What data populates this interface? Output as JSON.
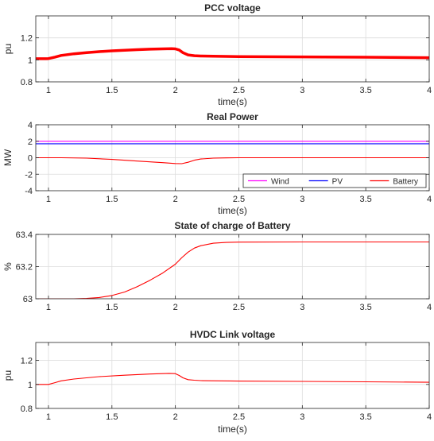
{
  "chart_data": [
    {
      "type": "line",
      "title": "PCC voltage",
      "xlabel": "time(s)",
      "ylabel": "pu",
      "xlim": [
        0.9,
        4.0
      ],
      "ylim": [
        0.8,
        1.4
      ],
      "xticks": [
        1,
        1.5,
        2,
        2.5,
        3,
        3.5,
        4
      ],
      "xtick_labels": [
        "1",
        "1.5",
        "2",
        "2.5",
        "3",
        "3.5",
        "4"
      ],
      "yticks": [
        0.8,
        1.0,
        1.2
      ],
      "ytick_labels": [
        "0.8",
        "1",
        "1.2"
      ],
      "grid": true,
      "series": [
        {
          "color": "#ff0000",
          "x": [
            0.9,
            0.98,
            1.0,
            1.05,
            1.1,
            1.2,
            1.3,
            1.4,
            1.5,
            1.6,
            1.7,
            1.8,
            1.9,
            1.97,
            2.0,
            2.03,
            2.06,
            2.1,
            2.15,
            2.2,
            2.3,
            2.5,
            3.0,
            3.5,
            4.0
          ],
          "y": [
            1.01,
            1.01,
            1.012,
            1.025,
            1.04,
            1.055,
            1.065,
            1.075,
            1.082,
            1.088,
            1.093,
            1.097,
            1.1,
            1.102,
            1.1,
            1.09,
            1.065,
            1.045,
            1.038,
            1.035,
            1.033,
            1.03,
            1.027,
            1.024,
            1.02
          ]
        }
      ]
    },
    {
      "type": "line",
      "title": "Real Power",
      "xlabel": "time(s)",
      "ylabel": "MW",
      "xlim": [
        0.9,
        4.0
      ],
      "ylim": [
        -4,
        4
      ],
      "xticks": [
        1,
        1.5,
        2,
        2.5,
        3,
        3.5,
        4
      ],
      "xtick_labels": [
        "1",
        "1.5",
        "2",
        "2.5",
        "3",
        "3.5",
        "4"
      ],
      "yticks": [
        -4,
        -2,
        0,
        2,
        4
      ],
      "ytick_labels": [
        "-4",
        "-2",
        "0",
        "2",
        "4"
      ],
      "grid": true,
      "legend": "bottom-right",
      "series": [
        {
          "name": "Wind",
          "color": "#ff00ff",
          "x": [
            0.9,
            4.0
          ],
          "y": [
            2.0,
            2.0
          ]
        },
        {
          "name": "PV",
          "color": "#0000ff",
          "x": [
            0.9,
            4.0
          ],
          "y": [
            1.7,
            1.7
          ]
        },
        {
          "name": "Battery",
          "color": "#ff0000",
          "x": [
            0.9,
            1.1,
            1.3,
            1.5,
            1.7,
            1.9,
            2.0,
            2.05,
            2.1,
            2.15,
            2.2,
            2.3,
            2.4,
            2.5,
            3.0,
            4.0
          ],
          "y": [
            0,
            0,
            -0.05,
            -0.2,
            -0.4,
            -0.6,
            -0.7,
            -0.72,
            -0.55,
            -0.3,
            -0.15,
            -0.05,
            -0.02,
            0,
            0,
            0
          ]
        }
      ]
    },
    {
      "type": "line",
      "title": "State of charge of Battery",
      "xlabel": "",
      "ylabel": "%",
      "xlim": [
        0.9,
        4.0
      ],
      "ylim": [
        63.0,
        63.4
      ],
      "xticks": [
        1,
        1.5,
        2,
        2.5,
        3,
        3.5,
        4
      ],
      "xtick_labels": [
        "1",
        "1.5",
        "2",
        "2.5",
        "3",
        "3.5",
        "4"
      ],
      "yticks": [
        63.0,
        63.2,
        63.4
      ],
      "ytick_labels": [
        "63",
        "63.2",
        "63.4"
      ],
      "grid": true,
      "series": [
        {
          "color": "#ff0000",
          "x": [
            0.9,
            1.2,
            1.3,
            1.4,
            1.5,
            1.6,
            1.7,
            1.8,
            1.9,
            2.0,
            2.05,
            2.1,
            2.15,
            2.2,
            2.3,
            2.4,
            2.5,
            3.0,
            4.0
          ],
          "y": [
            63.0,
            63.0,
            63.002,
            63.008,
            63.02,
            63.042,
            63.075,
            63.115,
            63.16,
            63.215,
            63.255,
            63.29,
            63.315,
            63.33,
            63.345,
            63.35,
            63.352,
            63.353,
            63.353
          ]
        }
      ]
    },
    {
      "type": "line",
      "title": "HVDC Link voltage",
      "xlabel": "time(s)",
      "ylabel": "pu",
      "xlim": [
        0.9,
        4.0
      ],
      "ylim": [
        0.8,
        1.35
      ],
      "xticks": [
        1,
        1.5,
        2,
        2.5,
        3,
        3.5,
        4
      ],
      "xtick_labels": [
        "1",
        "1.5",
        "2",
        "2.5",
        "3",
        "3.5",
        "4"
      ],
      "yticks": [
        0.8,
        1.0,
        1.2
      ],
      "ytick_labels": [
        "0.8",
        "1",
        "1.2"
      ],
      "grid": true,
      "series": [
        {
          "color": "#ff0000",
          "x": [
            0.9,
            1.0,
            1.05,
            1.1,
            1.2,
            1.4,
            1.6,
            1.8,
            1.95,
            2.0,
            2.03,
            2.06,
            2.1,
            2.15,
            2.2,
            2.5,
            3.0,
            3.5,
            4.0
          ],
          "y": [
            1.0,
            1.0,
            1.015,
            1.03,
            1.045,
            1.065,
            1.077,
            1.087,
            1.092,
            1.09,
            1.075,
            1.055,
            1.04,
            1.035,
            1.032,
            1.028,
            1.025,
            1.022,
            1.018
          ]
        }
      ]
    }
  ]
}
